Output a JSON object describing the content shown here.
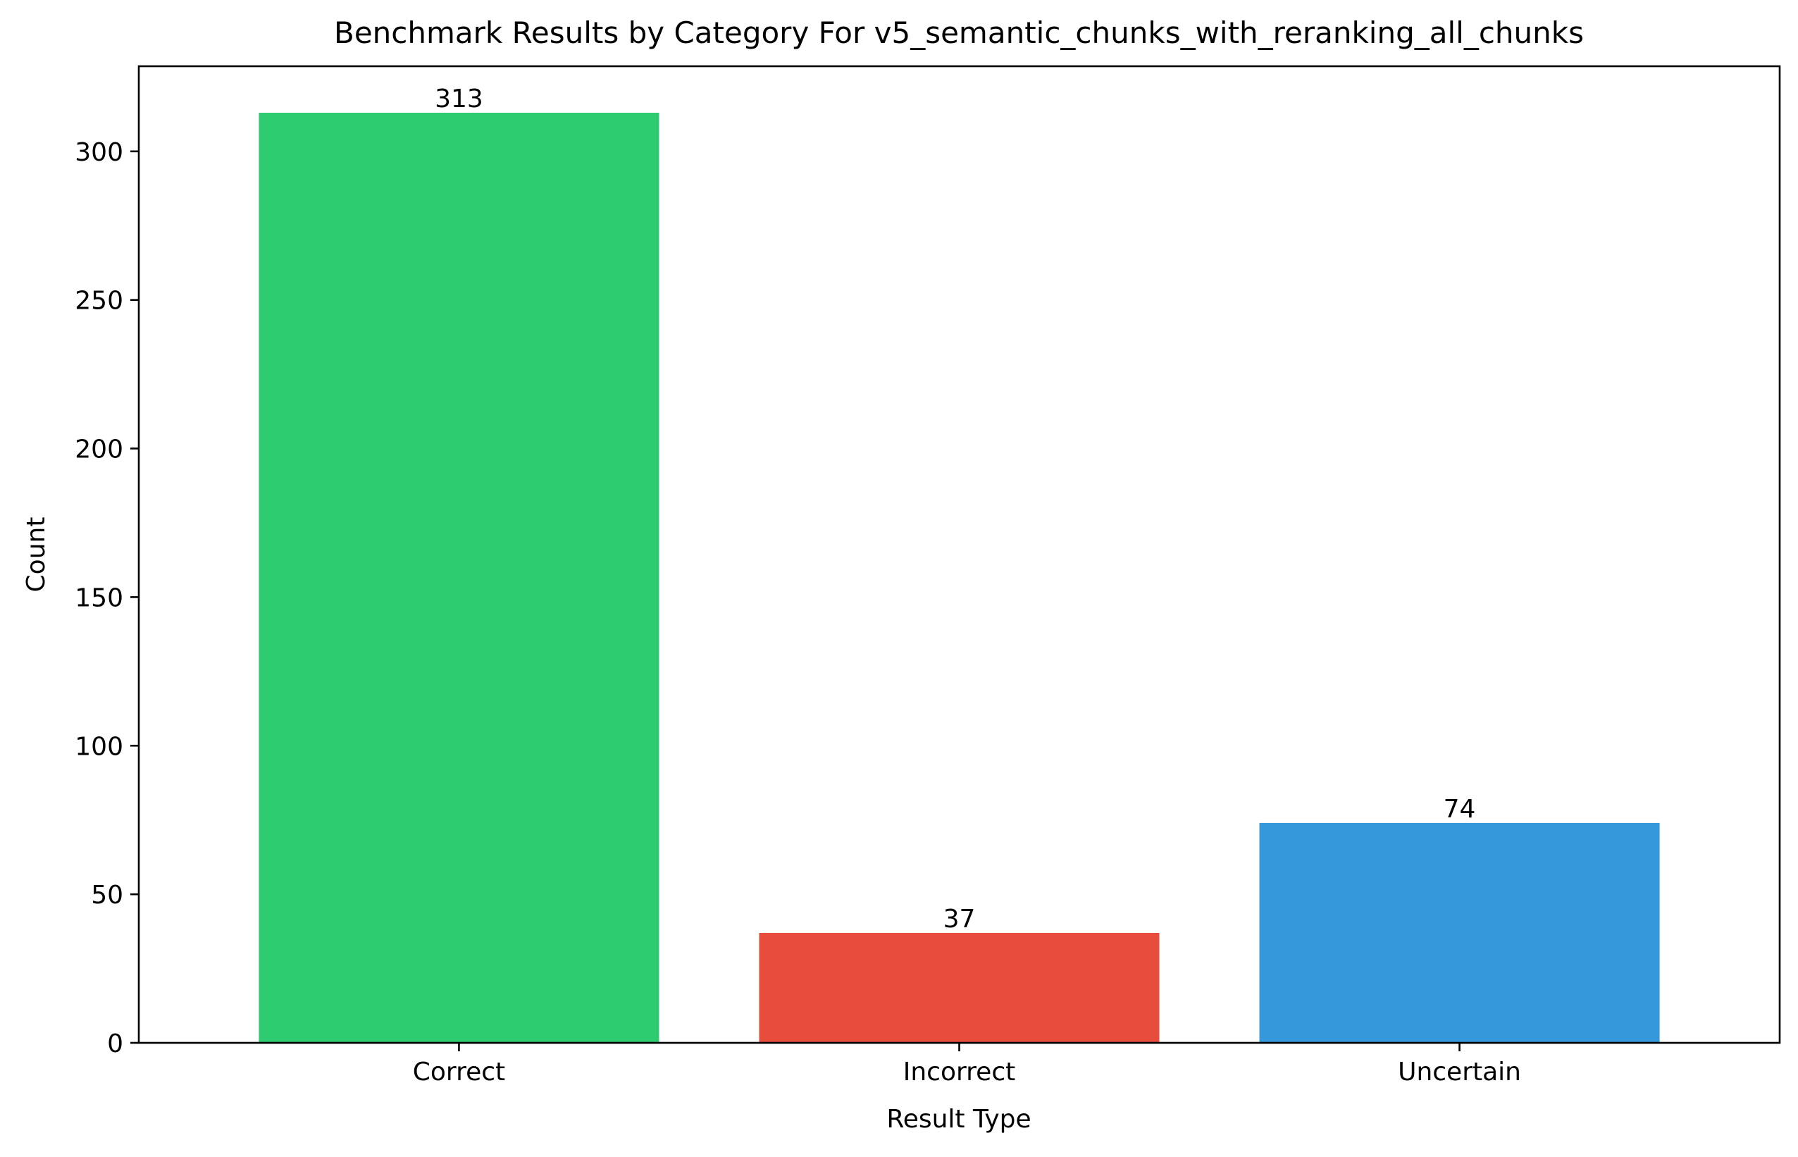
{
  "chart_data": {
    "type": "bar",
    "title": "Benchmark Results by Category For v5_semantic_chunks_with_reranking_all_chunks",
    "xlabel": "Result Type",
    "ylabel": "Count",
    "categories": [
      "Correct",
      "Incorrect",
      "Uncertain"
    ],
    "values": [
      313,
      37,
      74
    ],
    "value_labels": [
      "313",
      "37",
      "74"
    ],
    "colors": [
      "#2ecc71",
      "#e74c3c",
      "#3498db"
    ],
    "ylim": [
      0,
      328.65
    ],
    "yticks": [
      0,
      50,
      100,
      150,
      200,
      250,
      300
    ],
    "ytick_labels": [
      "0",
      "50",
      "100",
      "150",
      "200",
      "250",
      "300"
    ],
    "grid": false,
    "legend": false
  }
}
